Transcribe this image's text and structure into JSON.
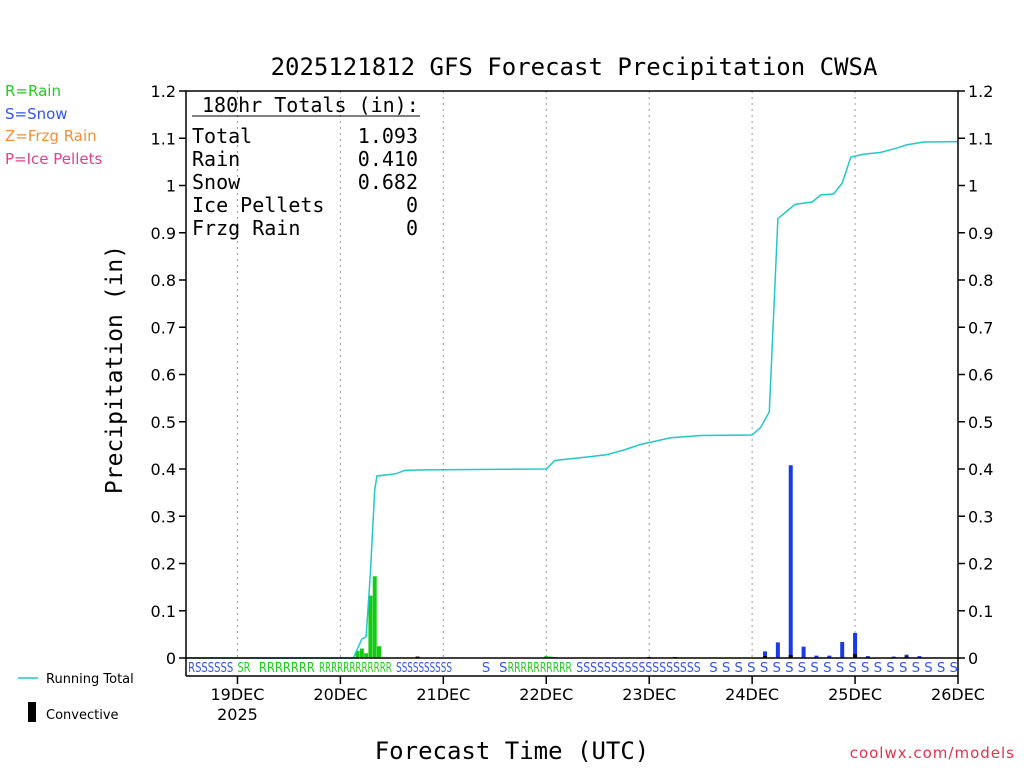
{
  "legend_types": [
    {
      "text": "R=Rain",
      "color": "#22cc22"
    },
    {
      "text": "S=Snow",
      "color": "#3355ee"
    },
    {
      "text": "Z=Frzg Rain",
      "color": "#f0903a"
    },
    {
      "text": "P=Ice Pellets",
      "color": "#e04090"
    }
  ],
  "credit": "coolwx.com/models",
  "chart_data": {
    "type": "bar",
    "title": "2025121812 GFS Forecast Precipitation CWSA",
    "xlabel": "Forecast Time (UTC)",
    "ylabel": "Precipitation (in)",
    "ylim": [
      0,
      1.2
    ],
    "yticks": [
      "0",
      "0.1",
      "0.2",
      "0.3",
      "0.4",
      "0.5",
      "0.6",
      "0.7",
      "0.8",
      "0.9",
      "1",
      "1.1",
      "1.2"
    ],
    "xlim_hours": [
      0,
      180
    ],
    "xticks": [
      {
        "label": "19DEC",
        "hour": 12,
        "sub": "2025"
      },
      {
        "label": "20DEC",
        "hour": 36
      },
      {
        "label": "21DEC",
        "hour": 60
      },
      {
        "label": "22DEC",
        "hour": 84
      },
      {
        "label": "23DEC",
        "hour": 108
      },
      {
        "label": "24DEC",
        "hour": 132
      },
      {
        "label": "25DEC",
        "hour": 156
      },
      {
        "label": "26DEC",
        "hour": 180
      }
    ],
    "totals_box": {
      "heading": "180hr Totals (in):",
      "rows": [
        {
          "label": "Total",
          "value": "1.093"
        },
        {
          "label": "Rain",
          "value": "0.410"
        },
        {
          "label": "Snow",
          "value": "0.682"
        },
        {
          "label": "Ice Pellets",
          "value": "0"
        },
        {
          "label": "Frzg Rain",
          "value": "0"
        }
      ]
    },
    "series": [
      {
        "name": "Running Total",
        "type": "line",
        "color": "#22c8c8",
        "points": [
          [
            0,
            0
          ],
          [
            39,
            0
          ],
          [
            40,
            0.02
          ],
          [
            41,
            0.04
          ],
          [
            42,
            0.045
          ],
          [
            43,
            0.18
          ],
          [
            44,
            0.355
          ],
          [
            44.5,
            0.385
          ],
          [
            47,
            0.388
          ],
          [
            49,
            0.39
          ],
          [
            51,
            0.397
          ],
          [
            56,
            0.398
          ],
          [
            84,
            0.4
          ],
          [
            86,
            0.418
          ],
          [
            90,
            0.422
          ],
          [
            94,
            0.426
          ],
          [
            98,
            0.43
          ],
          [
            102,
            0.44
          ],
          [
            106,
            0.452
          ],
          [
            110,
            0.46
          ],
          [
            113,
            0.466
          ],
          [
            120,
            0.471
          ],
          [
            132,
            0.472
          ],
          [
            134,
            0.488
          ],
          [
            136,
            0.521
          ],
          [
            138,
            0.93
          ],
          [
            140,
            0.945
          ],
          [
            142,
            0.96
          ],
          [
            146,
            0.965
          ],
          [
            148,
            0.98
          ],
          [
            151,
            0.982
          ],
          [
            153,
            1.005
          ],
          [
            155,
            1.06
          ],
          [
            158,
            1.066
          ],
          [
            162,
            1.07
          ],
          [
            166,
            1.08
          ],
          [
            168,
            1.086
          ],
          [
            172,
            1.092
          ],
          [
            180,
            1.093
          ]
        ]
      },
      {
        "name": "Rain",
        "type": "bar",
        "color": "#11cc11",
        "points": [
          [
            40,
            0.015
          ],
          [
            41,
            0.02
          ],
          [
            42,
            0.01
          ],
          [
            43,
            0.132
          ],
          [
            44,
            0.173
          ],
          [
            45,
            0.025
          ],
          [
            84,
            0.004
          ],
          [
            85,
            0.003
          ],
          [
            86,
            0.002
          ]
        ]
      },
      {
        "name": "Snow",
        "type": "bar",
        "color": "#1a3ae8",
        "points": [
          [
            135,
            0.014
          ],
          [
            138,
            0.033
          ],
          [
            141,
            0.408
          ],
          [
            144,
            0.024
          ],
          [
            147,
            0.005
          ],
          [
            150,
            0.005
          ],
          [
            153,
            0.034
          ],
          [
            156,
            0.053
          ],
          [
            159,
            0.004
          ],
          [
            165,
            0.003
          ],
          [
            168,
            0.007
          ],
          [
            171,
            0.004
          ]
        ]
      },
      {
        "name": "Convective",
        "type": "bar",
        "color": "#000000",
        "points": [
          [
            54,
            0.003
          ],
          [
            108,
            0.002
          ],
          [
            114,
            0.002
          ],
          [
            135,
            0.004
          ],
          [
            141,
            0.006
          ],
          [
            156,
            0.008
          ],
          [
            159,
            0.002
          ],
          [
            168,
            0.003
          ]
        ]
      }
    ],
    "precip_type_row": [
      {
        "text": "RSSSSSS",
        "color": "#3355ee",
        "hour": 0.5,
        "end": 11
      },
      {
        "text": "SR",
        "color": "#22cc22",
        "hour": 12,
        "end": 15
      },
      {
        "text": "RRRRRRR",
        "color": "#22cc22",
        "hour": 17,
        "end": 30
      },
      {
        "text": "RRRRRRRRRRRR",
        "color": "#22cc22",
        "hour": 31,
        "end": 48
      },
      {
        "text": "SSSSSSSSSS",
        "color": "#3355ee",
        "hour": 49,
        "end": 62
      },
      {
        "text": "S",
        "color": "#3355ee",
        "hour": 69
      },
      {
        "text": "S",
        "color": "#3355ee",
        "hour": 73
      },
      {
        "text": "RRRRRRRRRR",
        "color": "#22cc22",
        "hour": 75,
        "end": 90
      },
      {
        "text": "SSSSSSSSSSSSSSSSSS",
        "color": "#3355ee",
        "hour": 91,
        "end": 120
      },
      {
        "text": "S S S S S S S S S S S S S S S S S S S S",
        "color": "#3355ee",
        "hour": 122,
        "end": 180
      }
    ],
    "legend": [
      {
        "name": "Running Total",
        "marker": "line"
      },
      {
        "name": "Convective",
        "marker": "bar"
      }
    ]
  }
}
